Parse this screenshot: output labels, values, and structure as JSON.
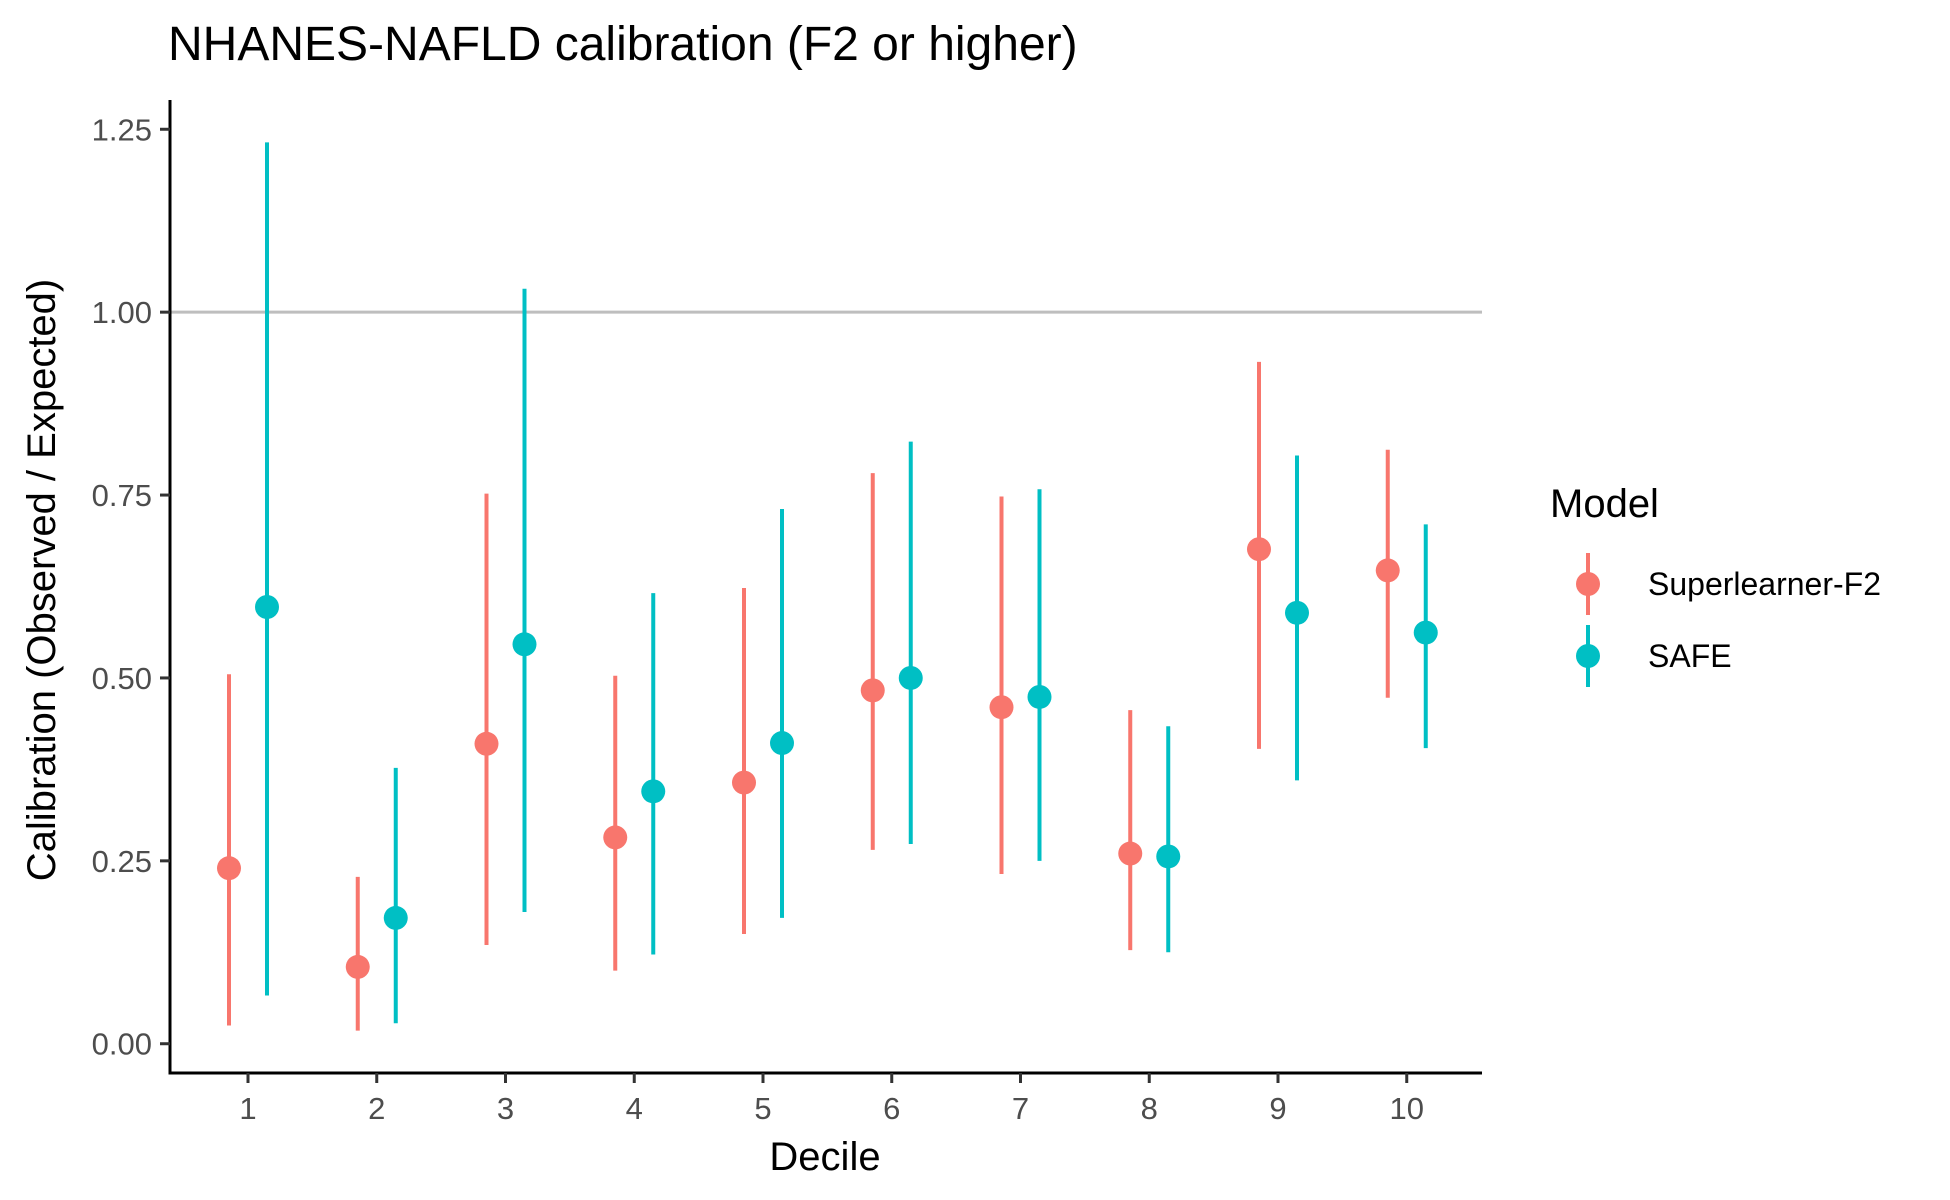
{
  "chart_data": {
    "type": "scatter",
    "title": "NHANES-NAFLD calibration (F2 or higher)",
    "xlabel": "Decile",
    "ylabel": "Calibration (Observed / Expected)",
    "categories": [
      "1",
      "2",
      "3",
      "4",
      "5",
      "6",
      "7",
      "8",
      "9",
      "10"
    ],
    "ylim": [
      -0.04,
      1.29
    ],
    "y_ticks": [
      "0.00",
      "0.25",
      "0.50",
      "0.75",
      "1.00",
      "1.25"
    ],
    "reference_line": 1.0,
    "grid": false,
    "legend": {
      "title": "Model",
      "placement": "right"
    },
    "series": [
      {
        "name": "Superlearner-F2",
        "color": "#F8766D",
        "values": [
          0.24,
          0.105,
          0.41,
          0.282,
          0.357,
          0.483,
          0.46,
          0.26,
          0.676,
          0.647
        ],
        "lower": [
          0.025,
          0.018,
          0.135,
          0.1,
          0.15,
          0.265,
          0.232,
          0.128,
          0.403,
          0.473
        ],
        "upper": [
          0.505,
          0.228,
          0.752,
          0.503,
          0.623,
          0.78,
          0.748,
          0.456,
          0.932,
          0.812
        ]
      },
      {
        "name": "SAFE",
        "color": "#00BFC4",
        "values": [
          0.597,
          0.172,
          0.546,
          0.345,
          0.411,
          0.5,
          0.474,
          0.256,
          0.589,
          0.562
        ],
        "lower": [
          0.066,
          0.028,
          0.18,
          0.122,
          0.172,
          0.273,
          0.25,
          0.125,
          0.36,
          0.404
        ],
        "upper": [
          1.232,
          0.377,
          1.032,
          0.616,
          0.731,
          0.823,
          0.758,
          0.434,
          0.804,
          0.71
        ]
      }
    ]
  }
}
